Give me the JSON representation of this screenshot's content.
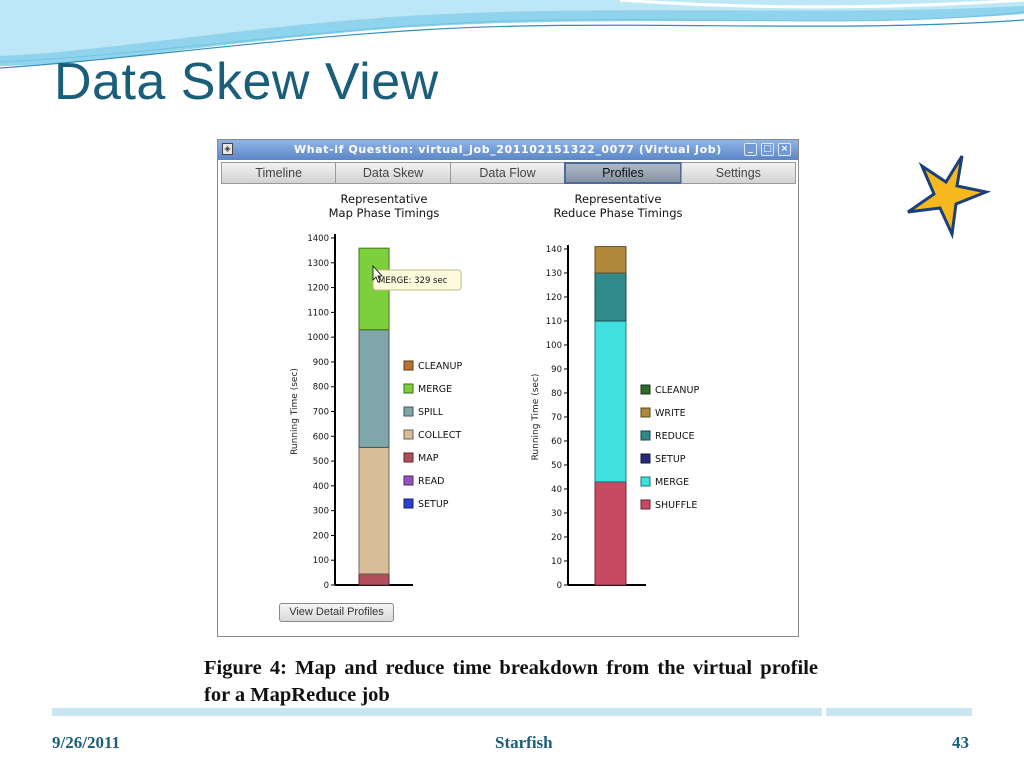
{
  "slide": {
    "title": "Data Skew View",
    "caption": "Figure 4: Map and reduce time breakdown from the virtual profile for a MapReduce job",
    "footer": {
      "date": "9/26/2011",
      "center": "Starfish",
      "page": "43"
    }
  },
  "window": {
    "title": "What-if Question: virtual_job_201102151322_0077 (Virtual Job)",
    "tabs": [
      "Timeline",
      "Data Skew",
      "Data Flow",
      "Profiles",
      "Settings"
    ],
    "active_tab": "Profiles",
    "detail_button": "View Detail Profiles",
    "tooltip": "MERGE: 329 sec"
  },
  "colors": {
    "title": "#1b5e7a",
    "active_tab_border": "#4b6a9b",
    "star_fill": "#f6b81c",
    "star_stroke": "#1b3f7a"
  },
  "chart_data": [
    {
      "type": "bar",
      "stacked": true,
      "title": "Representative\nMap Phase Timings",
      "ylabel": "Running Time (sec)",
      "ylim": [
        0,
        1400
      ],
      "yticks": [
        0,
        100,
        200,
        300,
        400,
        500,
        600,
        700,
        800,
        900,
        1000,
        1100,
        1200,
        1300,
        1400
      ],
      "ytick_labels": [
        "0",
        "100",
        "200",
        "300",
        "400",
        "500",
        "600",
        "700",
        "800",
        "900",
        "1000",
        "1100",
        "1200",
        "1300",
        "1400"
      ],
      "legend": [
        "CLEANUP",
        "MERGE",
        "SPILL",
        "COLLECT",
        "MAP",
        "READ",
        "SETUP"
      ],
      "legend_colors": [
        "#b8732f",
        "#7dcf3b",
        "#7fa6a8",
        "#d8bd9b",
        "#b24e5a",
        "#9652c0",
        "#2f3fd1"
      ],
      "series": [
        {
          "name": "SETUP",
          "values": [
            0
          ],
          "color": "#2f3fd1"
        },
        {
          "name": "READ",
          "values": [
            0
          ],
          "color": "#9652c0"
        },
        {
          "name": "MAP",
          "values": [
            45
          ],
          "color": "#b24e5a"
        },
        {
          "name": "COLLECT",
          "values": [
            510
          ],
          "color": "#d8bd9b"
        },
        {
          "name": "SPILL",
          "values": [
            475
          ],
          "color": "#7fa6a8"
        },
        {
          "name": "MERGE",
          "values": [
            329
          ],
          "color": "#7dcf3b"
        },
        {
          "name": "CLEANUP",
          "values": [
            0
          ],
          "color": "#b8732f"
        }
      ]
    },
    {
      "type": "bar",
      "stacked": true,
      "title": "Representative\nReduce Phase Timings",
      "ylabel": "Running Time (sec)",
      "ylim": [
        0,
        140
      ],
      "yticks": [
        0,
        10,
        20,
        30,
        40,
        50,
        60,
        70,
        80,
        90,
        100,
        110,
        120,
        130,
        140
      ],
      "ytick_labels": [
        "0",
        "10",
        "20",
        "30",
        "40",
        "50",
        "60",
        "70",
        "80",
        "90",
        "100",
        "110",
        "120",
        "130",
        "140"
      ],
      "legend": [
        "CLEANUP",
        "WRITE",
        "REDUCE",
        "SETUP",
        "MERGE",
        "SHUFFLE"
      ],
      "legend_colors": [
        "#2f6b2f",
        "#b08a3a",
        "#2f8a8a",
        "#2a2a7a",
        "#3fe0e0",
        "#c84a62"
      ],
      "series": [
        {
          "name": "SHUFFLE",
          "values": [
            43
          ],
          "color": "#c84a62"
        },
        {
          "name": "MERGE",
          "values": [
            67
          ],
          "color": "#3fe0e0"
        },
        {
          "name": "SETUP",
          "values": [
            0
          ],
          "color": "#2a2a7a"
        },
        {
          "name": "REDUCE",
          "values": [
            20
          ],
          "color": "#2f8a8a"
        },
        {
          "name": "WRITE",
          "values": [
            11
          ],
          "color": "#b08a3a"
        },
        {
          "name": "CLEANUP",
          "values": [
            0
          ],
          "color": "#2f6b2f"
        }
      ]
    }
  ]
}
